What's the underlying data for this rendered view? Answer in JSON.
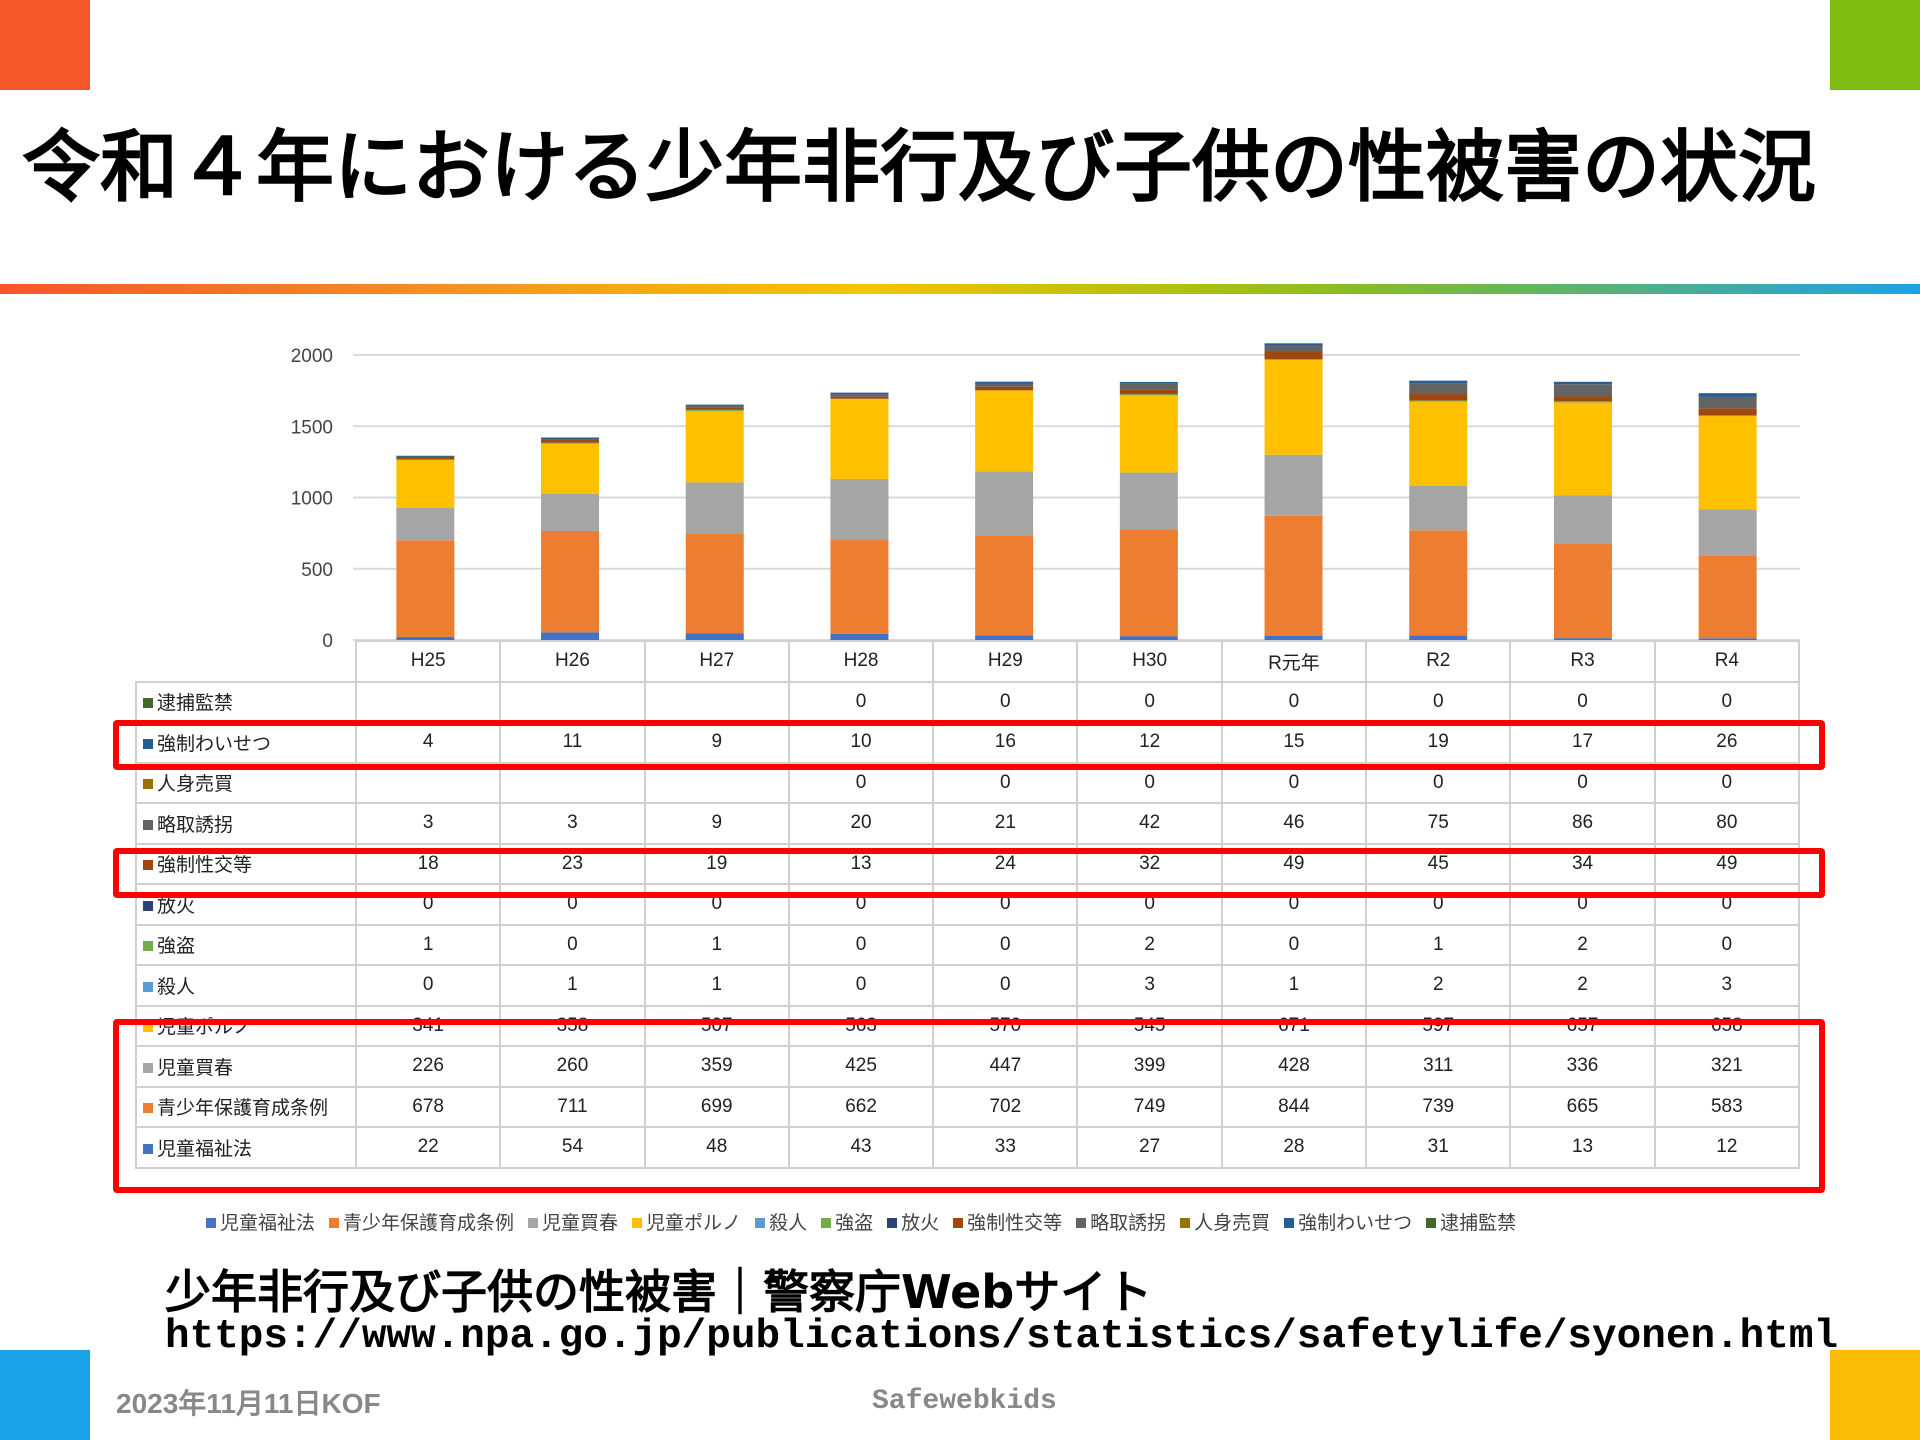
{
  "title": "令和４年における少年非行及び子供の性被害の状況",
  "colors": {
    "corner_tl": "#f4572a",
    "corner_tr": "#7fbc11",
    "corner_bl": "#1aa3e8",
    "corner_br": "#fbbc05",
    "highlight": "#ff0000"
  },
  "chart_data": {
    "type": "bar",
    "stacked": true,
    "categories": [
      "H25",
      "H26",
      "H27",
      "H28",
      "H29",
      "H30",
      "R元年",
      "R2",
      "R3",
      "R4"
    ],
    "ylim": [
      0,
      2000
    ],
    "yticks": [
      0,
      500,
      1000,
      1500,
      2000
    ],
    "grid": true,
    "legend_placement": "bottom",
    "series": [
      {
        "name": "児童福祉法",
        "color": "#4472C4",
        "values": [
          22,
          54,
          48,
          43,
          33,
          27,
          28,
          31,
          13,
          12
        ]
      },
      {
        "name": "青少年保護育成条例",
        "color": "#ED7D31",
        "values": [
          678,
          711,
          699,
          662,
          702,
          749,
          844,
          739,
          665,
          583
        ]
      },
      {
        "name": "児童買春",
        "color": "#A5A5A5",
        "values": [
          226,
          260,
          359,
          425,
          447,
          399,
          428,
          311,
          336,
          321
        ]
      },
      {
        "name": "児童ポルノ",
        "color": "#FFC000",
        "values": [
          341,
          358,
          507,
          563,
          570,
          545,
          671,
          597,
          657,
          658
        ]
      },
      {
        "name": "殺人",
        "color": "#5B9BD5",
        "values": [
          0,
          1,
          1,
          0,
          0,
          3,
          1,
          2,
          2,
          3
        ]
      },
      {
        "name": "強盗",
        "color": "#70AD47",
        "values": [
          1,
          0,
          1,
          0,
          0,
          2,
          0,
          1,
          2,
          0
        ]
      },
      {
        "name": "放火",
        "color": "#264478",
        "values": [
          0,
          0,
          0,
          0,
          0,
          0,
          0,
          0,
          0,
          0
        ]
      },
      {
        "name": "強制性交等",
        "color": "#9E480E",
        "values": [
          18,
          23,
          19,
          13,
          24,
          32,
          49,
          45,
          34,
          49
        ]
      },
      {
        "name": "略取誘拐",
        "color": "#636363",
        "values": [
          3,
          3,
          9,
          20,
          21,
          42,
          46,
          75,
          86,
          80
        ]
      },
      {
        "name": "人身売買",
        "color": "#997300",
        "values": [
          null,
          null,
          null,
          0,
          0,
          0,
          0,
          0,
          0,
          0
        ]
      },
      {
        "name": "強制わいせつ",
        "color": "#255E91",
        "values": [
          4,
          11,
          9,
          10,
          16,
          12,
          15,
          19,
          17,
          26
        ]
      },
      {
        "name": "逮捕監禁",
        "color": "#43682B",
        "values": [
          null,
          null,
          null,
          0,
          0,
          0,
          0,
          0,
          0,
          0
        ]
      }
    ],
    "highlighted_rows": [
      "強制わいせつ",
      "強制性交等",
      "児童ポルノ",
      "児童買春",
      "青少年保護育成条例",
      "児童福祉法"
    ]
  },
  "source": {
    "title": "少年非行及び子供の性被害｜警察庁Webサイト",
    "url": "https://www.npa.go.jp/publications/statistics/safetylife/syonen.html"
  },
  "footer": {
    "date": "2023年11月11日KOF",
    "brand": "Safewebkids"
  }
}
